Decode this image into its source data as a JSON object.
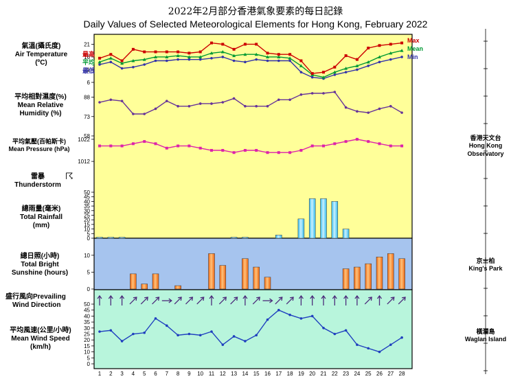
{
  "title_zh": "2022年2月部分香港氣象要素的每日記錄",
  "title_en": "Daily Values of Selected Meteorological Elements for Hong Kong, February 2022",
  "labels": {
    "temp_zh": "氣溫(攝氏度)",
    "temp_en": "Air Temperature",
    "temp_unit": "(ºC)",
    "hum_zh": "平均相對濕度(%)",
    "hum_en1": "Mean Relative",
    "hum_en2": "Humidity  (%)",
    "pres_zh": "平均氣壓(百帕斯卡)",
    "pres_en": "Mean Pressure (hPa)",
    "thunder_zh": "雷暴",
    "thunder_en": "Thunderstorm",
    "thunder_sym": "☈",
    "rain_zh": "總雨量(毫米)",
    "rain_en1": "Total Rainfall",
    "rain_en2": "(mm)",
    "sun_zh": "總日照(小時)",
    "sun_en1": "Total Bright",
    "sun_en2": "Sunshine  (hours)",
    "wdir_zh": "盛行風向Prevailing",
    "wdir_en": "Wind Direction",
    "wspd_zh": "平均風速(公里/小時)",
    "wspd_en1": "Mean Wind Speed",
    "wspd_en2": "(km/h)"
  },
  "legend": {
    "max_zh": "最高",
    "mean_zh": "平均",
    "min_zh": "最低",
    "max_en": "Max",
    "mean_en": "Mean",
    "min_en": "Min"
  },
  "stations": {
    "hko_zh": "香港天文台",
    "hko_en1": "Hong Kong",
    "hko_en2": "Observatory",
    "kp_zh": "京士柏",
    "kp_en": "King's Park",
    "wi_zh": "橫瀾島",
    "wi_en": "Waglan Island"
  },
  "colors": {
    "max": "#cc0000",
    "mean": "#009933",
    "min": "#3333aa",
    "humidity": "#663399",
    "pressure": "#dd22aa",
    "wind": "#1f3fbf",
    "rain_bar": "#33bbee",
    "sun_bar": "#ee6611",
    "panel_top": "#ffff99",
    "panel_mid": "#a6c4ee",
    "panel_bot": "#b8f5dc"
  },
  "chart_data": {
    "type": "line",
    "days": [
      "1",
      "2",
      "3",
      "4",
      "5",
      "6",
      "7",
      "8",
      "9",
      "10",
      "11",
      "12",
      "13",
      "14",
      "15",
      "16",
      "17",
      "18",
      "19",
      "20",
      "21",
      "22",
      "23",
      "24",
      "25",
      "26",
      "27",
      "28"
    ],
    "temperature": {
      "ticks": [
        6,
        11,
        16,
        21
      ],
      "ylim": [
        6,
        23
      ],
      "series": [
        {
          "name": "Max",
          "values": [
            15.5,
            17,
            14.5,
            19,
            18,
            18,
            18,
            18,
            17.5,
            18,
            21.5,
            21,
            19,
            21,
            21,
            17.5,
            17,
            17,
            14.5,
            9.5,
            10,
            12,
            16.5,
            15,
            19.5,
            20.5,
            21,
            21.5
          ]
        },
        {
          "name": "Mean",
          "values": [
            14,
            15.5,
            13.5,
            14.5,
            15,
            16,
            16,
            16.5,
            16,
            16,
            17.5,
            18,
            16.5,
            17,
            17,
            16,
            16,
            15.5,
            12.5,
            9,
            8,
            10,
            11.5,
            12.5,
            14,
            16,
            17.5,
            18.5
          ]
        },
        {
          "name": "Min",
          "values": [
            13,
            14,
            11.5,
            12,
            13,
            14.5,
            14.5,
            15,
            15,
            15,
            15.5,
            16,
            14.5,
            14,
            15,
            14.5,
            14.5,
            14.5,
            10,
            8,
            7.5,
            9,
            10,
            11,
            12.5,
            14,
            15,
            16
          ]
        }
      ]
    },
    "humidity": {
      "name": "Mean Relative Humidity",
      "ticks": [
        58,
        73,
        88
      ],
      "ylim": [
        58,
        92
      ],
      "values": [
        84,
        86,
        85,
        75,
        75,
        79,
        85,
        81,
        81,
        83,
        83,
        84,
        87,
        81,
        81,
        81,
        86,
        86,
        90,
        91,
        91,
        92,
        80,
        77,
        76,
        79,
        81,
        76
      ]
    },
    "pressure": {
      "name": "Mean Pressure",
      "ticks": [
        1012,
        1022
      ],
      "ylim": [
        1008,
        1026
      ],
      "values": [
        1019,
        1019,
        1019,
        1020,
        1021,
        1020,
        1018,
        1019,
        1019,
        1018,
        1017,
        1017,
        1016,
        1017,
        1017,
        1016,
        1016,
        1016,
        1017,
        1019,
        1019,
        1020,
        1021,
        1022,
        1021,
        1020,
        1019,
        1019
      ]
    },
    "rainfall": {
      "name": "Total Rainfall",
      "ticks": [
        0,
        5,
        10,
        15,
        20,
        25,
        30,
        35,
        40,
        45,
        50
      ],
      "ylim": [
        0,
        50
      ],
      "values": [
        0.6,
        0.5,
        0.8,
        0,
        0,
        0,
        0,
        0,
        0,
        0,
        0,
        0,
        0.4,
        1,
        0,
        0,
        3.5,
        0,
        21,
        43,
        43,
        40,
        10,
        0,
        0,
        0,
        0,
        0
      ]
    },
    "sunshine": {
      "name": "Total Bright Sunshine",
      "ticks": [
        0,
        5,
        10
      ],
      "ylim": [
        0,
        12
      ],
      "values": [
        0,
        0,
        0,
        4.5,
        1.5,
        4.5,
        0,
        1,
        0,
        0,
        10.5,
        7,
        0,
        9,
        6.5,
        3.5,
        0,
        0,
        0,
        0,
        0,
        0,
        6,
        6.5,
        7.5,
        9.5,
        10.5,
        9
      ]
    },
    "wind_direction": {
      "name": "Prevailing Wind Direction",
      "values": [
        "N",
        "N",
        "N",
        "NE",
        "NE",
        "NE",
        "E",
        "NE",
        "NE",
        "NE",
        "N",
        "NE",
        "NE",
        "N",
        "NE",
        "E",
        "NE",
        "NE",
        "N",
        "N",
        "N",
        "N",
        "N",
        "N",
        "NE",
        "N",
        "NE",
        "NE"
      ]
    },
    "wind_speed": {
      "name": "Mean Wind Speed",
      "ticks": [
        0,
        5,
        10,
        15,
        20,
        25,
        30,
        35,
        40,
        45,
        50
      ],
      "ylim": [
        0,
        50
      ],
      "values": [
        27,
        28,
        19,
        25,
        26,
        38,
        32,
        24,
        25,
        24,
        27,
        16,
        23,
        19,
        24,
        37,
        45,
        41,
        38,
        40,
        30,
        25,
        28,
        16,
        13,
        10,
        16,
        22
      ]
    }
  }
}
